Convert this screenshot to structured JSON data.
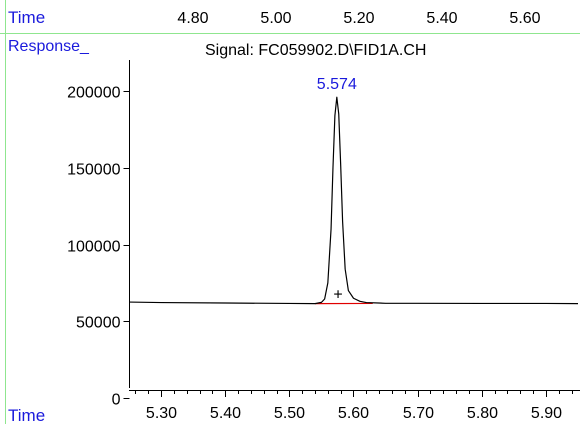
{
  "header": {
    "time_label": "Time",
    "top_ticks": [
      "4.80",
      "5.00",
      "5.20",
      "5.40",
      "5.60"
    ]
  },
  "colors": {
    "label_blue": "#1a1adc",
    "border_green": "#8fe68f",
    "trace": "#000000",
    "baseline": "#e00000"
  },
  "chart_data": {
    "type": "line",
    "title": "Signal: FC059902.D\\FID1A.CH",
    "ylabel": "Response_",
    "xlabel": "Time",
    "xlim": [
      5.25,
      5.95
    ],
    "ylim": [
      0,
      230000
    ],
    "x_ticks": [
      5.3,
      5.4,
      5.5,
      5.6,
      5.7,
      5.8,
      5.9
    ],
    "x_tick_labels": [
      "5.30",
      "5.40",
      "5.50",
      "5.60",
      "5.70",
      "5.80",
      "5.90"
    ],
    "y_ticks": [
      0,
      50000,
      100000,
      150000,
      200000
    ],
    "y_tick_labels": [
      "0",
      "50000",
      "100000",
      "150000",
      "200000"
    ],
    "series": [
      {
        "x": [
          5.25,
          5.3,
          5.4,
          5.5,
          5.54,
          5.55,
          5.555,
          5.56,
          5.565,
          5.568,
          5.571,
          5.574,
          5.577,
          5.58,
          5.583,
          5.587,
          5.592,
          5.6,
          5.61,
          5.62,
          5.65,
          5.7,
          5.8,
          5.9,
          5.95
        ],
        "y": [
          62500,
          62200,
          61900,
          61600,
          61500,
          62300,
          64500,
          75000,
          110000,
          150000,
          184000,
          196000,
          185000,
          152000,
          115000,
          84000,
          70000,
          65000,
          63000,
          62200,
          61700,
          61700,
          61600,
          61600,
          61500
        ]
      }
    ],
    "baseline_segment": {
      "x": [
        5.54,
        5.63
      ],
      "y": [
        61500,
        61600
      ]
    },
    "peak_annotation": {
      "x": 5.574,
      "y": 196000,
      "label": "5.574"
    },
    "marker": {
      "x": 5.576,
      "y": 68000,
      "symbol": "+"
    },
    "grid": false
  }
}
